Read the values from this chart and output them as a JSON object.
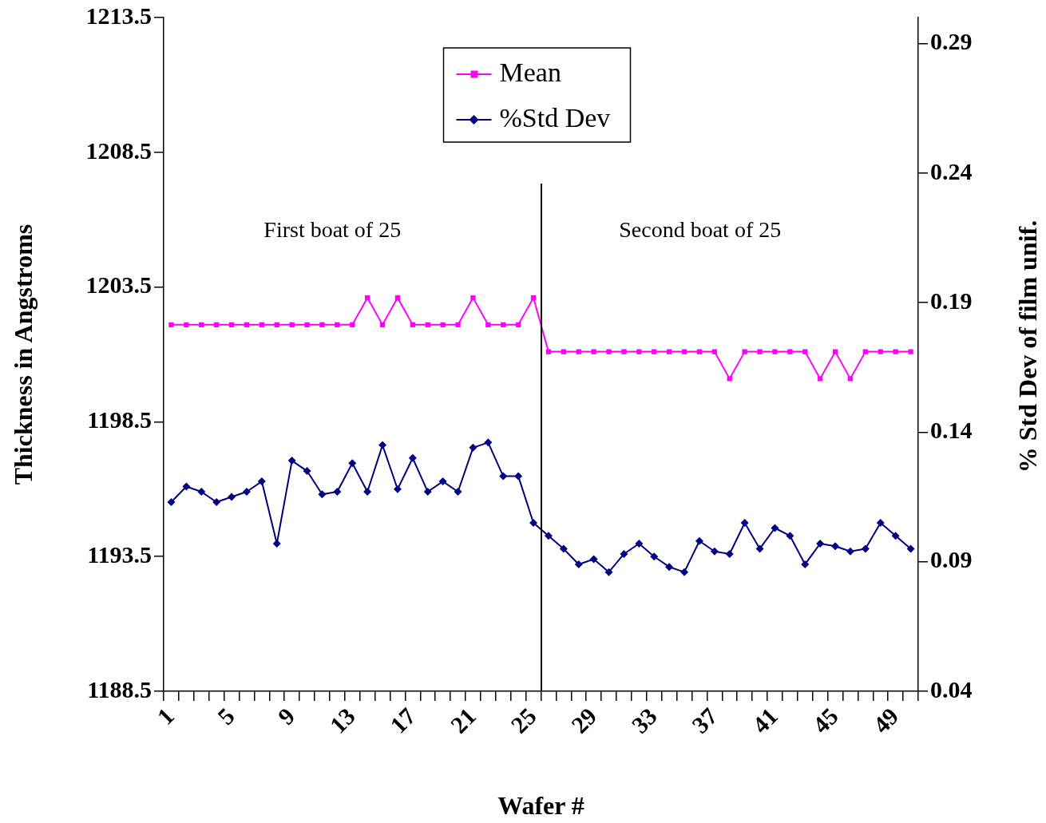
{
  "chart_data": {
    "type": "line",
    "xlabel": "Wafer #",
    "ylabel": "Thickness in Angstroms",
    "y2label": "% Std Dev of film unif.",
    "categories": [
      "1",
      null,
      null,
      null,
      "5",
      null,
      null,
      null,
      "9",
      null,
      null,
      null,
      "13",
      null,
      null,
      null,
      "17",
      null,
      null,
      null,
      "21",
      null,
      null,
      null,
      "25",
      null,
      null,
      null,
      "29",
      null,
      null,
      null,
      "33",
      null,
      null,
      null,
      "37",
      null,
      null,
      null,
      "41",
      null,
      null,
      null,
      "45",
      null,
      null,
      null,
      "49",
      null
    ],
    "series": [
      {
        "name": "Mean",
        "color": "#ff00ff",
        "marker": "square",
        "axis": "y",
        "values": [
          1202.1,
          1202.1,
          1202.1,
          1202.1,
          1202.1,
          1202.1,
          1202.1,
          1202.1,
          1202.1,
          1202.1,
          1202.1,
          1202.1,
          1202.1,
          1203.1,
          1202.1,
          1203.1,
          1202.1,
          1202.1,
          1202.1,
          1202.1,
          1203.1,
          1202.1,
          1202.1,
          1202.1,
          1203.1,
          1201.1,
          1201.1,
          1201.1,
          1201.1,
          1201.1,
          1201.1,
          1201.1,
          1201.1,
          1201.1,
          1201.1,
          1201.1,
          1201.1,
          1200.1,
          1201.1,
          1201.1,
          1201.1,
          1201.1,
          1201.1,
          1200.1,
          1201.1,
          1200.1,
          1201.1,
          1201.1,
          1201.1,
          1201.1
        ]
      },
      {
        "name": "%Std Dev",
        "color": "#000080",
        "marker": "diamond",
        "axis": "y2",
        "values": [
          0.113,
          0.119,
          0.117,
          0.113,
          0.115,
          0.117,
          0.121,
          0.097,
          0.129,
          0.125,
          0.116,
          0.117,
          0.128,
          0.117,
          0.135,
          0.118,
          0.13,
          0.117,
          0.121,
          0.117,
          0.134,
          0.136,
          0.123,
          0.123,
          0.105,
          0.1,
          0.095,
          0.089,
          0.091,
          0.086,
          0.093,
          0.097,
          0.092,
          0.088,
          0.086,
          0.098,
          0.094,
          0.093,
          0.105,
          0.095,
          0.103,
          0.1,
          0.089,
          0.097,
          0.096,
          0.094,
          0.095,
          0.105,
          0.1,
          0.095
        ]
      }
    ],
    "ylim": [
      1188.5,
      1213.5
    ],
    "yticks": [
      1188.5,
      1193.5,
      1198.5,
      1203.5,
      1208.5,
      1213.5
    ],
    "y2lim": [
      0.04,
      0.3
    ],
    "y2ticks": [
      0.04,
      0.09,
      0.14,
      0.19,
      0.24,
      0.29
    ],
    "annotations": [
      "First boat of 25",
      "Second boat of 25"
    ],
    "legend": "top",
    "grid": false
  }
}
